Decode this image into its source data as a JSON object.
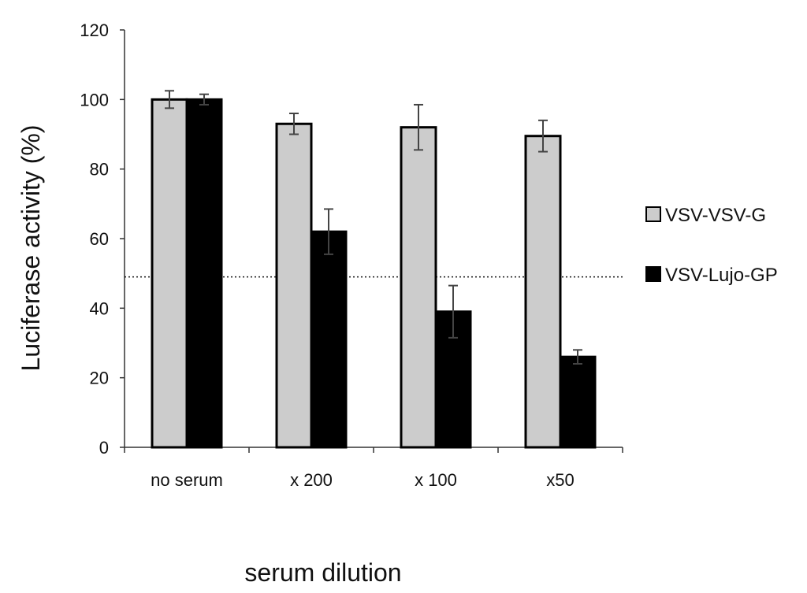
{
  "chart_data": {
    "type": "bar",
    "title": "",
    "xlabel": "serum dilution",
    "ylabel": "Luciferase activity (%)",
    "categories": [
      "no serum",
      "x 200",
      "x 100",
      "x50"
    ],
    "series": [
      {
        "name": "VSV-VSV-G",
        "color": "#cccccc",
        "values": [
          100,
          93,
          92,
          89.5
        ],
        "errors": [
          2.5,
          3,
          6.5,
          4.5
        ]
      },
      {
        "name": "VSV-Lujo-GP",
        "color": "#000000",
        "values": [
          100,
          62,
          39,
          26
        ],
        "errors": [
          1.5,
          6.5,
          7.5,
          2
        ]
      }
    ],
    "ylim": [
      0,
      120
    ],
    "yticks": [
      0,
      20,
      40,
      60,
      80,
      100,
      120
    ],
    "reference_line": {
      "y": 49,
      "style": "dotted"
    },
    "grid": false,
    "legend_position": "right"
  }
}
